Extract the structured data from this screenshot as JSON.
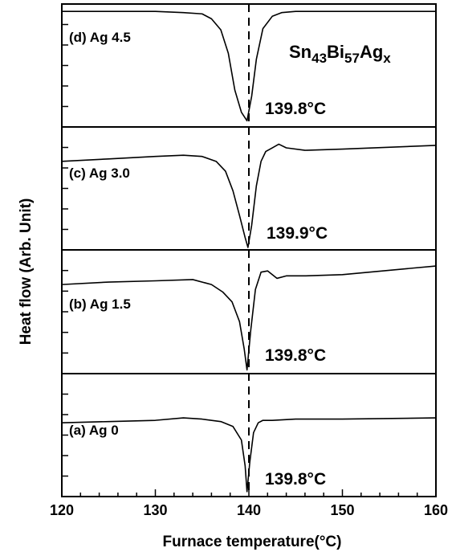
{
  "chart_data": {
    "type": "line",
    "xlabel": "Furnace temperature(°C)",
    "ylabel": "Heat flow (Arb. Unit)",
    "xlim": [
      120,
      160
    ],
    "x_ticks": [
      "120",
      "130",
      "140",
      "150",
      "160"
    ],
    "composition": {
      "base": "Sn",
      "sub1": "43",
      "el2": "Bi",
      "sub2": "57",
      "el3": "Ag",
      "sub3": "x"
    },
    "reference_line_x": 140,
    "panels": [
      {
        "label": "(d) Ag 4.5",
        "peak_label": "139.8°C",
        "peak_x": 139.8,
        "x": [
          120,
          130,
          133,
          135,
          136,
          137,
          137.8,
          138.5,
          139.2,
          139.8,
          140.3,
          140.8,
          141.5,
          142.5,
          143.5,
          145,
          150,
          160
        ],
        "y": [
          0.94,
          0.94,
          0.93,
          0.92,
          0.88,
          0.79,
          0.6,
          0.3,
          0.12,
          0.05,
          0.25,
          0.55,
          0.8,
          0.9,
          0.93,
          0.94,
          0.94,
          0.94
        ]
      },
      {
        "label": "(c) Ag 3.0",
        "peak_label": "139.9°C",
        "peak_x": 139.9,
        "x": [
          120,
          125,
          130,
          133,
          135,
          136.5,
          137.5,
          138.3,
          139,
          139.6,
          139.9,
          140.3,
          140.8,
          141.3,
          141.8,
          142.5,
          143.2,
          144,
          146,
          150,
          160
        ],
        "y": [
          0.72,
          0.74,
          0.76,
          0.77,
          0.76,
          0.72,
          0.64,
          0.48,
          0.28,
          0.1,
          0.02,
          0.2,
          0.52,
          0.72,
          0.8,
          0.83,
          0.86,
          0.83,
          0.81,
          0.82,
          0.85
        ]
      },
      {
        "label": "(b) Ag 1.5",
        "peak_label": "139.8°C",
        "peak_x": 139.8,
        "x": [
          120,
          125,
          130,
          134,
          136,
          137.2,
          138.2,
          139,
          139.5,
          139.8,
          140.2,
          140.7,
          141.3,
          142,
          143,
          144,
          146,
          150,
          160
        ],
        "y": [
          0.72,
          0.74,
          0.75,
          0.76,
          0.72,
          0.66,
          0.58,
          0.42,
          0.2,
          0.03,
          0.35,
          0.68,
          0.82,
          0.83,
          0.77,
          0.79,
          0.79,
          0.8,
          0.87
        ]
      },
      {
        "label": "(a) Ag 0",
        "peak_label": "139.8°C",
        "peak_x": 139.8,
        "x": [
          120,
          125,
          130,
          133,
          135,
          137,
          138.3,
          139.2,
          139.6,
          139.8,
          140.1,
          140.5,
          141,
          141.5,
          142.5,
          145,
          150,
          160
        ],
        "y": [
          0.6,
          0.61,
          0.62,
          0.64,
          0.63,
          0.61,
          0.57,
          0.46,
          0.25,
          0.04,
          0.28,
          0.52,
          0.6,
          0.62,
          0.62,
          0.63,
          0.63,
          0.64
        ]
      }
    ]
  }
}
